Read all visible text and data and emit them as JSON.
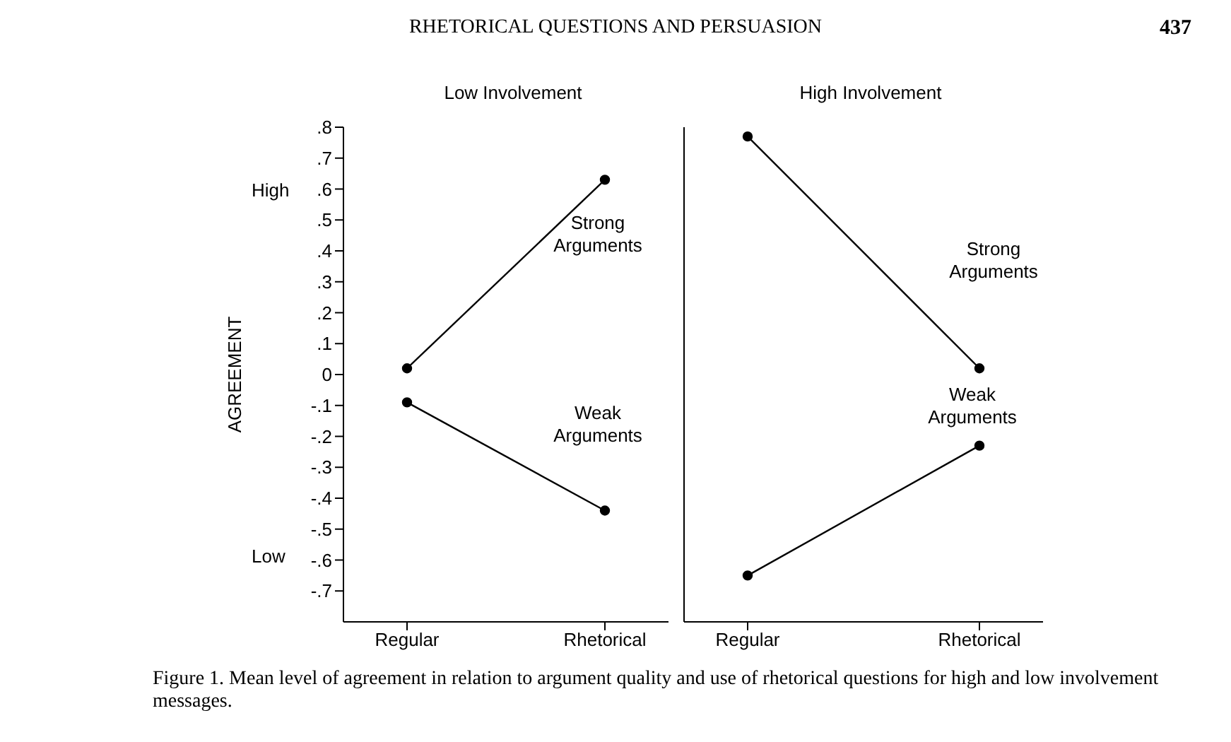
{
  "chart_data": [
    {
      "type": "line",
      "title": "Low Involvement",
      "ylabel": "AGREEMENT",
      "categories": [
        "Regular",
        "Rhetorical"
      ],
      "marker": "circle",
      "series": [
        {
          "name": "Strong Arguments",
          "color": "#000000",
          "values": [
            0.02,
            0.63
          ]
        },
        {
          "name": "Weak Arguments",
          "color": "#000000",
          "values": [
            -0.09,
            -0.44
          ]
        }
      ],
      "ylim": [
        -0.8,
        0.8
      ],
      "yticks": [
        {
          "value": 0.8,
          "label": ".8"
        },
        {
          "value": 0.7,
          "label": ".7"
        },
        {
          "value": 0.6,
          "label": ".6"
        },
        {
          "value": 0.5,
          "label": ".5"
        },
        {
          "value": 0.4,
          "label": ".4"
        },
        {
          "value": 0.3,
          "label": ".3"
        },
        {
          "value": 0.2,
          "label": ".2"
        },
        {
          "value": 0.1,
          "label": ".1"
        },
        0,
        {
          "value": -0.1,
          "label": "-.1"
        },
        {
          "value": -0.2,
          "label": "-.2"
        },
        {
          "value": -0.3,
          "label": "-.3"
        },
        {
          "value": -0.4,
          "label": "-.4"
        },
        {
          "value": -0.5,
          "label": "-.5"
        },
        {
          "value": -0.6,
          "label": "-.6"
        },
        {
          "value": -0.7,
          "label": "-.7"
        }
      ],
      "annotations": [
        "RHETORICAL QUESTIONS AND PERSUASION",
        "437",
        "Figure 1. Mean level of agreement in relation to argument quality and use of rhetorical questions for high and low involvement messages.",
        "High",
        "Low"
      ]
    },
    {
      "type": "line",
      "title": "High Involvement",
      "categories": [
        "Regular",
        "Rhetorical"
      ],
      "marker": "circle",
      "tick_labels": "x",
      "series": [
        {
          "name": "Strong Arguments",
          "color": "#000000",
          "values": [
            0.77,
            0.02
          ]
        },
        {
          "name": "Weak Arguments",
          "color": "#000000",
          "values": [
            -0.65,
            -0.23
          ]
        }
      ],
      "ylim": [
        -0.8,
        0.8
      ]
    }
  ]
}
